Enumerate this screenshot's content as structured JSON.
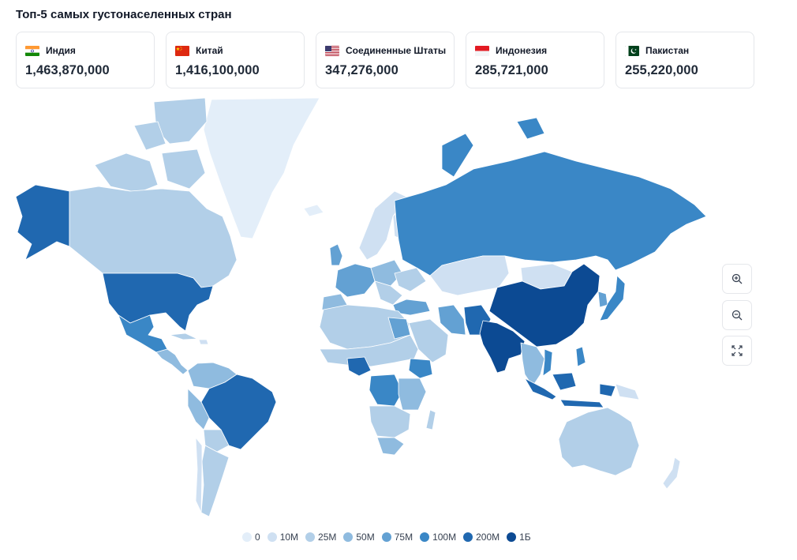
{
  "title": "Топ-5 самых густонаселенных стран",
  "cards": [
    {
      "name": "Индия",
      "value": "1,463,870,000",
      "flag": "india"
    },
    {
      "name": "Китай",
      "value": "1,416,100,000",
      "flag": "china"
    },
    {
      "name": "Соединенные Штаты",
      "value": "347,276,000",
      "flag": "usa"
    },
    {
      "name": "Индонезия",
      "value": "285,721,000",
      "flag": "indonesia"
    },
    {
      "name": "Пакистан",
      "value": "255,220,000",
      "flag": "pakistan"
    }
  ],
  "controls": {
    "zoom_in": "zoom-in-icon",
    "zoom_out": "zoom-out-icon",
    "fullscreen": "fullscreen-icon"
  },
  "legend": [
    {
      "label": "0",
      "color": "#e3eef9"
    },
    {
      "label": "10M",
      "color": "#cfe0f2"
    },
    {
      "label": "25M",
      "color": "#b2cfe8"
    },
    {
      "label": "50M",
      "color": "#8fbbdf"
    },
    {
      "label": "75M",
      "color": "#63a1d3"
    },
    {
      "label": "100M",
      "color": "#3a87c6"
    },
    {
      "label": "200M",
      "color": "#2068b0"
    },
    {
      "label": "1Б",
      "color": "#0c4a93"
    }
  ]
}
